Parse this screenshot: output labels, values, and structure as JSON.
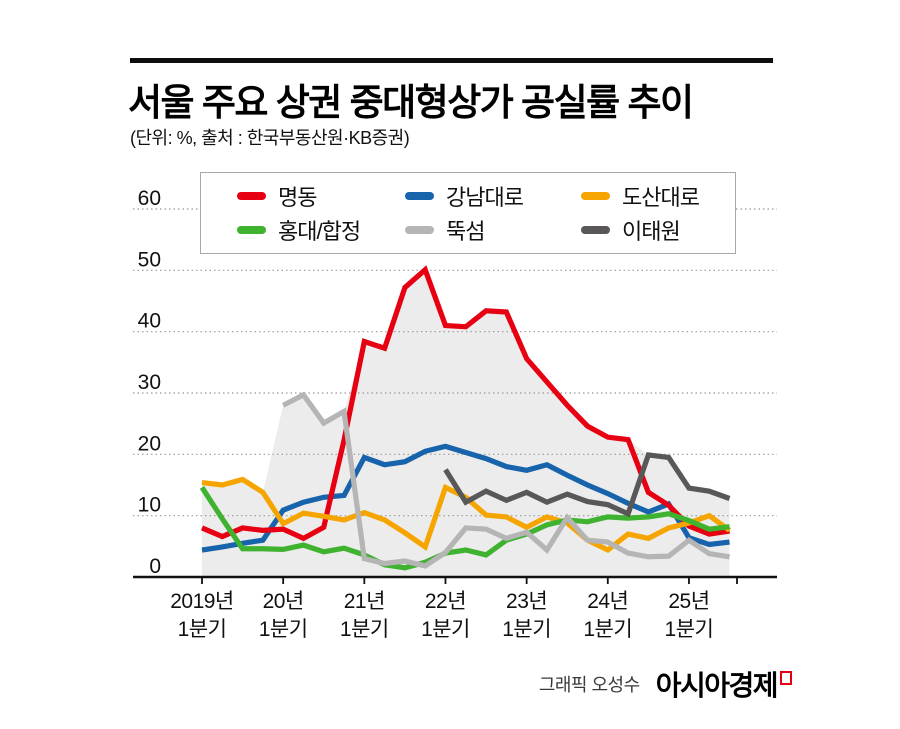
{
  "title": "서울 주요 상권 중대형상가 공실률 추이",
  "subtitle": "(단위: %, 출처 : 한국부동산원·KB증권)",
  "footer": {
    "credit": "그래픽 오성수",
    "brand": "아시아경제"
  },
  "colors": {
    "rule": "#0d0d0d",
    "axis": "#111111",
    "grid": "#999999",
    "envelope_fill": "#ececec",
    "legend_border": "#a9a9a9",
    "brand_mark_red": "#e60012"
  },
  "chart_data": {
    "type": "line",
    "title": "서울 주요 상권 중대형상가 공실률 추이",
    "unit": "%",
    "ylim": [
      0,
      60
    ],
    "yticks": [
      0,
      10,
      20,
      30,
      40,
      50,
      60
    ],
    "grid": true,
    "legend_position": "top",
    "n_points": 27,
    "x_start": "2019년 1분기",
    "x_end": "2025년 3분기",
    "x_tick_quarter_indices": [
      0,
      4,
      8,
      12,
      16,
      20,
      24
    ],
    "x_tick_labels": [
      [
        "2019년",
        "1분기"
      ],
      [
        "20년",
        "1분기"
      ],
      [
        "21년",
        "1분기"
      ],
      [
        "22년",
        "1분기"
      ],
      [
        "23년",
        "1분기"
      ],
      [
        "24년",
        "1분기"
      ],
      [
        "25년",
        "1분기"
      ]
    ],
    "series": [
      {
        "key": "myeongdong",
        "name": "명동",
        "color": "#e60012",
        "start": 0,
        "values": [
          8.0,
          6.6,
          8.0,
          7.6,
          7.8,
          6.3,
          8.1,
          22.3,
          38.4,
          37.3,
          47.2,
          50.1,
          41.0,
          40.8,
          43.4,
          43.2,
          35.6,
          31.8,
          28.0,
          24.6,
          22.8,
          22.4,
          13.8,
          11.7,
          8.3,
          7.0,
          7.5
        ]
      },
      {
        "key": "gangnam-daero",
        "name": "강남대로",
        "color": "#1763ac",
        "start": 0,
        "values": [
          4.4,
          4.9,
          5.5,
          6.0,
          10.9,
          12.2,
          13.0,
          13.3,
          19.5,
          18.3,
          18.8,
          20.5,
          21.3,
          20.3,
          19.3,
          18.0,
          17.4,
          18.3,
          16.6,
          15.0,
          13.6,
          12.0,
          10.6,
          11.9,
          6.4,
          5.3,
          5.7
        ]
      },
      {
        "key": "dosan-daero",
        "name": "도산대로",
        "color": "#f6a500",
        "start": 0,
        "values": [
          15.4,
          15.0,
          15.9,
          13.8,
          8.7,
          10.4,
          9.9,
          9.3,
          10.5,
          9.3,
          7.2,
          4.9,
          14.6,
          13.0,
          10.1,
          9.8,
          8.1,
          9.8,
          8.8,
          6.0,
          4.4,
          7.0,
          6.3,
          8.0,
          8.8,
          10.0,
          7.6
        ]
      },
      {
        "key": "hongdae-hapjeong",
        "name": "홍대/합정",
        "color": "#3fb22f",
        "start": 0,
        "values": [
          14.6,
          9.5,
          4.6,
          4.6,
          4.5,
          5.2,
          4.1,
          4.7,
          3.6,
          2.0,
          1.5,
          2.4,
          3.9,
          4.4,
          3.6,
          6.0,
          7.0,
          8.5,
          9.3,
          9.0,
          9.8,
          9.6,
          9.8,
          10.3,
          9.2,
          7.8,
          8.2
        ]
      },
      {
        "key": "ttukseom",
        "name": "뚝섬",
        "color": "#b5b5b6",
        "start": 4,
        "values": [
          28.0,
          29.7,
          25.1,
          27.0,
          3.0,
          2.2,
          2.6,
          1.8,
          4.0,
          8.0,
          7.8,
          6.3,
          7.3,
          4.4,
          9.7,
          6.0,
          5.7,
          3.9,
          3.3,
          3.4,
          6.0,
          3.8,
          3.3
        ]
      },
      {
        "key": "itaewon",
        "name": "이태원",
        "color": "#595757",
        "start": 12,
        "values": [
          17.5,
          12.2,
          14.0,
          12.5,
          13.8,
          12.2,
          13.5,
          12.3,
          11.8,
          10.3,
          19.9,
          19.5,
          14.5,
          14.0,
          12.8
        ]
      }
    ],
    "draw_order": [
      1,
      0,
      2,
      3,
      4,
      5
    ],
    "envelope": "shaded area under the maximum of all series",
    "envelope_fill": "#ececec"
  }
}
